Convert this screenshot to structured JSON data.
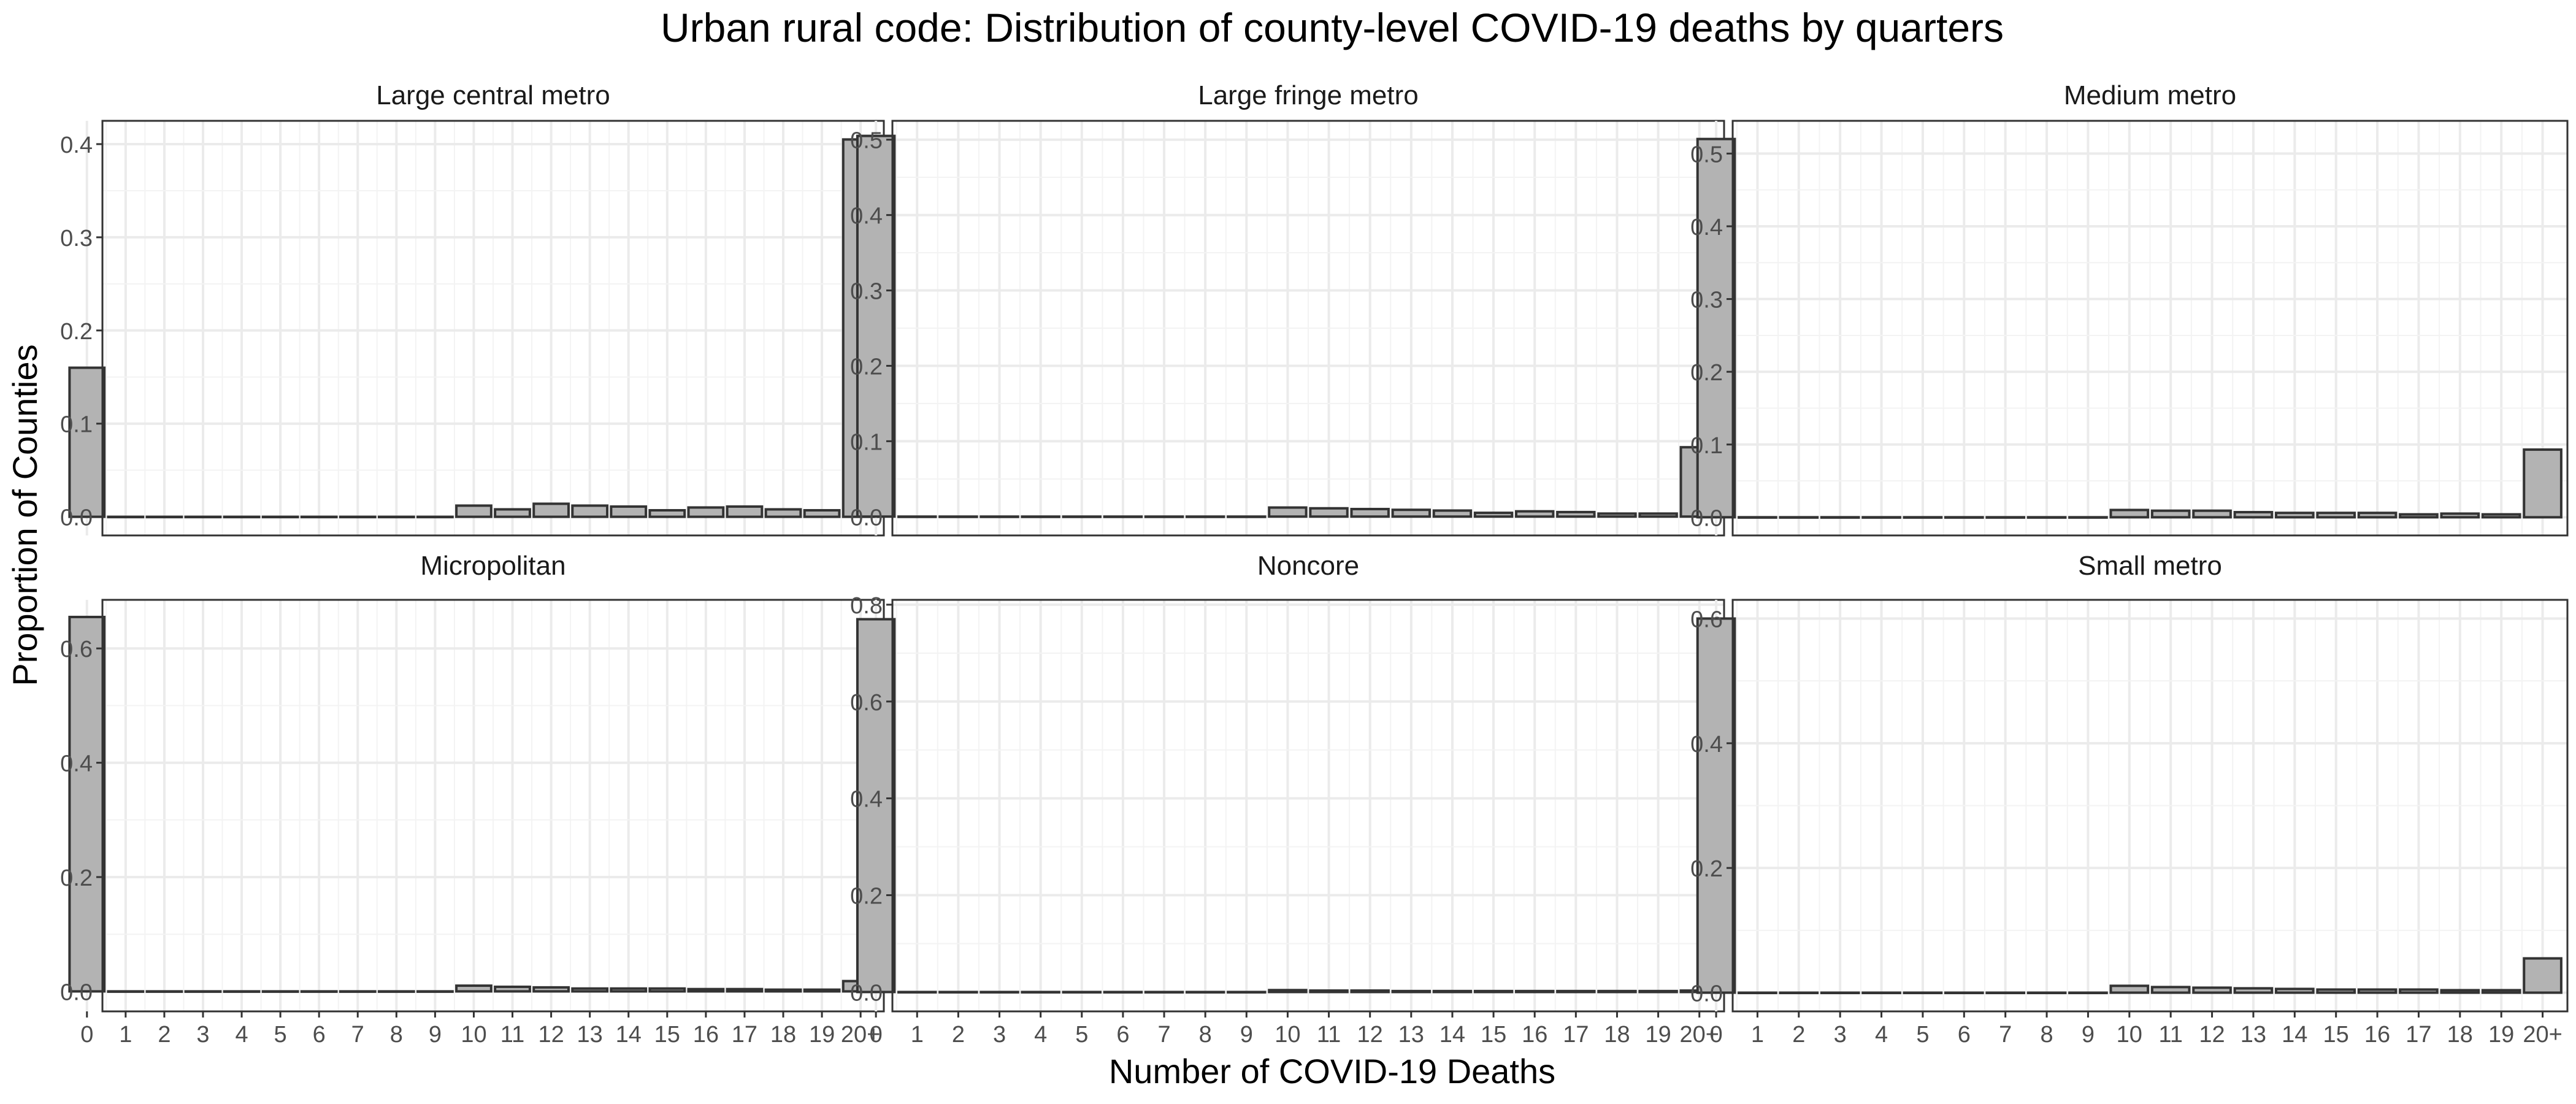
{
  "chart_data": {
    "type": "bar",
    "title": "Urban rural code: Distribution of county-level COVID-19 deaths by quarters",
    "xlabel": "Number of COVID-19 Deaths",
    "ylabel": "Proportion of Counties",
    "categories": [
      "0",
      "1",
      "2",
      "3",
      "4",
      "5",
      "6",
      "7",
      "8",
      "9",
      "10",
      "11",
      "12",
      "13",
      "14",
      "15",
      "16",
      "17",
      "18",
      "19",
      "20+"
    ],
    "bar_fill": "#b3b3b3",
    "bar_stroke": "#333333",
    "grid": true,
    "facets": [
      {
        "name": "Large central metro",
        "ylim": [
          -0.02,
          0.425
        ],
        "yticks": [
          0.0,
          0.1,
          0.2,
          0.3,
          0.4
        ],
        "ytick_labels": [
          "0.0",
          "0.1",
          "0.2",
          "0.3",
          "0.4"
        ],
        "values": [
          0.16,
          0,
          0,
          0,
          0,
          0,
          0,
          0,
          0,
          0,
          0.012,
          0.008,
          0.014,
          0.012,
          0.011,
          0.007,
          0.01,
          0.011,
          0.008,
          0.007,
          0.405
        ]
      },
      {
        "name": "Large fringe metro",
        "ylim": [
          -0.025,
          0.525
        ],
        "yticks": [
          0.0,
          0.1,
          0.2,
          0.3,
          0.4,
          0.5
        ],
        "ytick_labels": [
          "0.0",
          "0.1",
          "0.2",
          "0.3",
          "0.4",
          "0.5"
        ],
        "values": [
          0.505,
          0,
          0,
          0,
          0,
          0,
          0,
          0,
          0,
          0,
          0.012,
          0.011,
          0.01,
          0.009,
          0.008,
          0.005,
          0.007,
          0.006,
          0.004,
          0.004,
          0.092
        ]
      },
      {
        "name": "Medium metro",
        "ylim": [
          -0.025,
          0.545
        ],
        "yticks": [
          0.0,
          0.1,
          0.2,
          0.3,
          0.4,
          0.5
        ],
        "ytick_labels": [
          "0.0",
          "0.1",
          "0.2",
          "0.3",
          "0.4",
          "0.5"
        ],
        "values": [
          0.52,
          0,
          0,
          0,
          0,
          0,
          0,
          0,
          0,
          0,
          0.01,
          0.009,
          0.009,
          0.007,
          0.006,
          0.006,
          0.006,
          0.004,
          0.005,
          0.004,
          0.093
        ]
      },
      {
        "name": "Micropolitan",
        "ylim": [
          -0.035,
          0.685
        ],
        "yticks": [
          0.0,
          0.2,
          0.4,
          0.6
        ],
        "ytick_labels": [
          "0.0",
          "0.2",
          "0.4",
          "0.6"
        ],
        "values": [
          0.655,
          0,
          0,
          0,
          0,
          0,
          0,
          0,
          0,
          0,
          0.01,
          0.008,
          0.007,
          0.005,
          0.005,
          0.005,
          0.004,
          0.004,
          0.003,
          0.003,
          0.018
        ]
      },
      {
        "name": "Noncore",
        "ylim": [
          -0.04,
          0.81
        ],
        "yticks": [
          0.0,
          0.2,
          0.4,
          0.6,
          0.8
        ],
        "ytick_labels": [
          "0.0",
          "0.2",
          "0.4",
          "0.6",
          "0.8"
        ],
        "values": [
          0.77,
          0,
          0,
          0,
          0,
          0,
          0,
          0,
          0,
          0,
          0.004,
          0.003,
          0.003,
          0.002,
          0.002,
          0.002,
          0.002,
          0.002,
          0.002,
          0.002,
          0.003
        ]
      },
      {
        "name": "Small metro",
        "ylim": [
          -0.03,
          0.63
        ],
        "yticks": [
          0.0,
          0.2,
          0.4,
          0.6
        ],
        "ytick_labels": [
          "0.0",
          "0.2",
          "0.4",
          "0.6"
        ],
        "values": [
          0.6,
          0,
          0,
          0,
          0,
          0,
          0,
          0,
          0,
          0,
          0.011,
          0.009,
          0.008,
          0.007,
          0.006,
          0.005,
          0.005,
          0.005,
          0.004,
          0.004,
          0.055
        ]
      }
    ]
  }
}
